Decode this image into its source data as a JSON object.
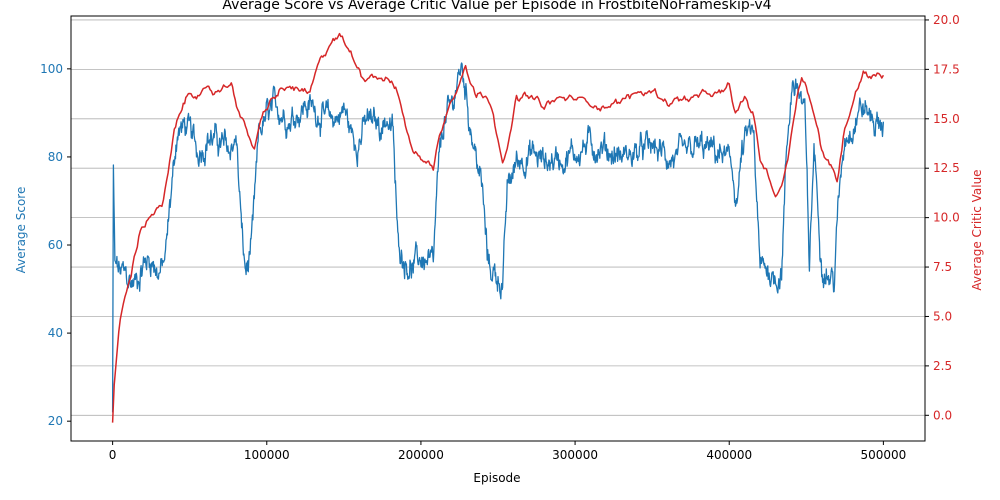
{
  "chart_data": {
    "type": "line",
    "title": "Average Score vs Average Critic Value per Episode in FrostbiteNoFrameskip-v4",
    "xlabel": "Episode",
    "ylabel_left": "Average Score",
    "ylabel_right": "Average Critic Value",
    "xlim": [
      -27000,
      527000
    ],
    "ylim_left": [
      15.5,
      112
    ],
    "ylim_right": [
      -1.3,
      20.2
    ],
    "x_ticks": [
      0,
      100000,
      200000,
      300000,
      400000,
      500000
    ],
    "x_tick_labels": [
      "0",
      "100000",
      "200000",
      "300000",
      "400000",
      "500000"
    ],
    "y_left_ticks": [
      20,
      40,
      60,
      80,
      100
    ],
    "y_left_tick_labels": [
      "20",
      "40",
      "60",
      "80",
      "100"
    ],
    "y_right_ticks": [
      0,
      2.5,
      5,
      7.5,
      10,
      12.5,
      15,
      17.5,
      20
    ],
    "y_right_tick_labels": [
      "0.0",
      "2.5",
      "5.0",
      "7.5",
      "10.0",
      "12.5",
      "15.0",
      "17.5",
      "20.0"
    ],
    "grid": "horizontal (right axis)",
    "colors": {
      "score": "#1f77b4",
      "critic": "#d62728",
      "grid": "#b0b0b0"
    },
    "series": [
      {
        "axis": "left",
        "x": [
          0,
          500,
          1500,
          4000,
          8000,
          12000,
          16000,
          20000,
          25000,
          30000,
          34000,
          38000,
          42000,
          48000,
          55000,
          62000,
          70000,
          76000,
          80000,
          84000,
          86000,
          88000,
          91000,
          95000,
          100000,
          108000,
          115000,
          125000,
          135000,
          140000,
          145000,
          150000,
          157000,
          165000,
          173000,
          178000,
          182000,
          185000,
          190000,
          195000,
          200000,
          205000,
          208000,
          211000,
          215000,
          220000,
          224000,
          227000,
          231000,
          236000,
          240000,
          243000,
          246000,
          250000,
          253000,
          256000,
          262000,
          270000,
          280000,
          290000,
          300000,
          310000,
          320000,
          330000,
          340000,
          350000,
          360000,
          370000,
          380000,
          390000,
          398000,
          402000,
          405000,
          408000,
          412000,
          416000,
          420000,
          425000,
          430000,
          434000,
          437000,
          441000,
          445000,
          449000,
          452000,
          455000,
          460000,
          465000,
          468000,
          471000,
          475000,
          480000,
          485000,
          490000,
          495000,
          500000
        ],
        "values": [
          22,
          76,
          55,
          54,
          53,
          51,
          52,
          56,
          57,
          54,
          56,
          72,
          86,
          87,
          81,
          85,
          83,
          81,
          85,
          62,
          54,
          55,
          63,
          85,
          89,
          91,
          89,
          92,
          90,
          88,
          89,
          91,
          83,
          88,
          87,
          89,
          85,
          60,
          57,
          55,
          57,
          56,
          54,
          75,
          88,
          91,
          98,
          100,
          90,
          80,
          72,
          57,
          54,
          53,
          51,
          72,
          79,
          81,
          79,
          80,
          81,
          83,
          82,
          80,
          81,
          82,
          80,
          79,
          82,
          81,
          80,
          76,
          70,
          80,
          85,
          84,
          54,
          55,
          52,
          55,
          80,
          98,
          95,
          90,
          55,
          82,
          57,
          53,
          52,
          70,
          85,
          88,
          92,
          90,
          88,
          88
        ]
      },
      {
        "axis": "right",
        "x": [
          0,
          1000,
          3000,
          5000,
          8000,
          12000,
          15000,
          18000,
          22000,
          27000,
          32000,
          36000,
          40000,
          45000,
          50000,
          57000,
          65000,
          72000,
          77000,
          82000,
          87000,
          92000,
          96000,
          102000,
          108000,
          115000,
          122000,
          128000,
          133000,
          138000,
          143000,
          148000,
          152000,
          157000,
          162000,
          170000,
          178000,
          182000,
          187000,
          190000,
          194000,
          200000,
          205000,
          208000,
          212000,
          217000,
          222000,
          226000,
          229000,
          232000,
          236000,
          242000,
          246000,
          250000,
          253000,
          256000,
          262000,
          270000,
          280000,
          290000,
          300000,
          310000,
          320000,
          330000,
          340000,
          350000,
          360000,
          370000,
          380000,
          390000,
          396000,
          400000,
          404000,
          410000,
          416000,
          420000,
          425000,
          430000,
          434000,
          438000,
          441000,
          444000,
          447000,
          450000,
          455000,
          460000,
          465000,
          470000,
          474000,
          478000,
          482000,
          487000,
          492000,
          496000,
          500000
        ],
        "values": [
          -0.4,
          1.5,
          3.2,
          4.8,
          6.0,
          7.0,
          8.3,
          9.3,
          9.9,
          10.4,
          10.5,
          12.2,
          14.2,
          15.5,
          16.3,
          16.4,
          16.2,
          16.6,
          16.8,
          15.5,
          14.3,
          13.5,
          14.8,
          15.8,
          16.3,
          16.6,
          16.4,
          16.2,
          17.5,
          18.3,
          19.1,
          19.2,
          18.6,
          17.9,
          17.2,
          17.3,
          17.1,
          16.8,
          15.8,
          14.7,
          13.4,
          13.1,
          12.8,
          12.4,
          14.2,
          15.5,
          16.5,
          17.3,
          17.9,
          16.8,
          16.2,
          16.3,
          15.8,
          14.2,
          13.0,
          13.4,
          16.0,
          16.1,
          15.6,
          16.0,
          16.0,
          15.8,
          15.7,
          15.9,
          16.3,
          16.4,
          15.9,
          16.0,
          16.1,
          16.2,
          16.3,
          16.6,
          15.2,
          16.0,
          15.1,
          13.0,
          12.2,
          11.2,
          11.6,
          13.0,
          14.8,
          16.2,
          17.2,
          16.8,
          15.3,
          13.5,
          12.6,
          11.9,
          14.1,
          15.3,
          16.5,
          17.5,
          17.1,
          17.5,
          17.2
        ]
      }
    ]
  }
}
